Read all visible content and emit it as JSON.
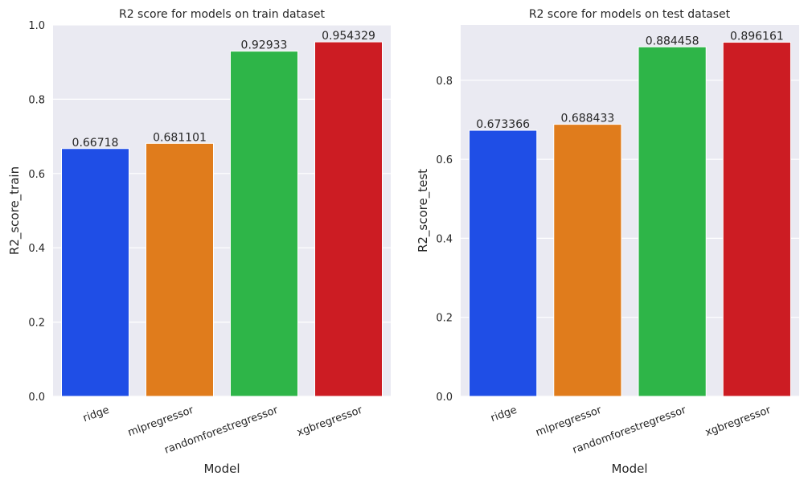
{
  "chart_data": [
    {
      "type": "bar",
      "title": "R2 score for models on train dataset",
      "xlabel": "Model",
      "ylabel": "R2_score_train",
      "categories": [
        "ridge",
        "mlpregressor",
        "randomforestregressor",
        "xgbregressor"
      ],
      "values": [
        0.66718,
        0.681101,
        0.92933,
        0.954329
      ],
      "data_labels": [
        "0.66718",
        "0.681101",
        "0.92933",
        "0.954329"
      ],
      "ylim": [
        0,
        1.0
      ],
      "yticks": [
        0.0,
        0.2,
        0.4,
        0.6,
        0.8,
        1.0
      ],
      "ytick_labels": [
        "0.0",
        "0.2",
        "0.4",
        "0.6",
        "0.8",
        "1.0"
      ],
      "colors": [
        "#1f4ee6",
        "#e07c1c",
        "#2eb548",
        "#cc1c23"
      ],
      "background": "#eaeaf2",
      "grid": true
    },
    {
      "type": "bar",
      "title": "R2 score for models on test dataset",
      "xlabel": "Model",
      "ylabel": "R2_score_test",
      "categories": [
        "ridge",
        "mlpregressor",
        "randomforestregressor",
        "xgbregressor"
      ],
      "values": [
        0.673366,
        0.688433,
        0.884458,
        0.896161
      ],
      "data_labels": [
        "0.673366",
        "0.688433",
        "0.884458",
        "0.896161"
      ],
      "ylim": [
        0,
        0.94
      ],
      "yticks": [
        0.0,
        0.2,
        0.4,
        0.6,
        0.8
      ],
      "ytick_labels": [
        "0.0",
        "0.2",
        "0.4",
        "0.6",
        "0.8"
      ],
      "colors": [
        "#1f4ee6",
        "#e07c1c",
        "#2eb548",
        "#cc1c23"
      ],
      "background": "#eaeaf2",
      "grid": true
    }
  ]
}
